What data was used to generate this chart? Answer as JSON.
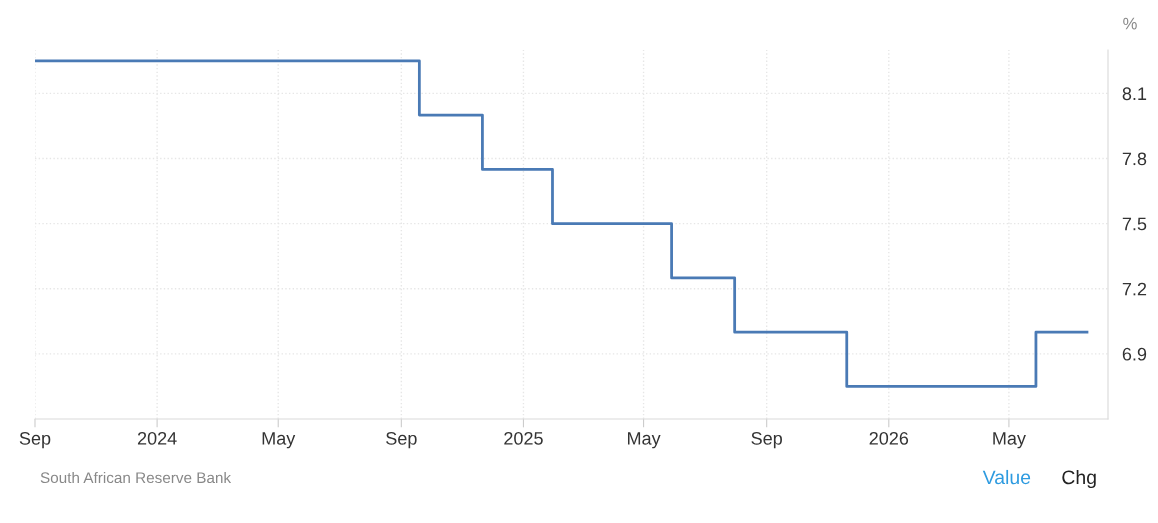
{
  "chart_data": {
    "type": "step",
    "ylabel": "%",
    "x": [
      "2023-09-01",
      "2024-09-19",
      "2024-11-21",
      "2025-01-30",
      "2025-05-29",
      "2025-07-31",
      "2025-11-20",
      "2026-05-28",
      "2026-07-18"
    ],
    "series": [
      {
        "color": "#4a7ab5",
        "values": [
          8.25,
          8.0,
          7.75,
          7.5,
          7.25,
          7.0,
          6.75,
          7.0,
          7.0
        ]
      }
    ],
    "xlim": [
      "2023-09-01",
      "2026-08-08"
    ],
    "xticks": [
      {
        "value": "2023-09-01",
        "label": "Sep"
      },
      {
        "value": "2024-01-01",
        "label": "2024"
      },
      {
        "value": "2024-05-01",
        "label": "May"
      },
      {
        "value": "2024-09-01",
        "label": "Sep"
      },
      {
        "value": "2025-01-01",
        "label": "2025"
      },
      {
        "value": "2025-05-01",
        "label": "May"
      },
      {
        "value": "2025-09-01",
        "label": "Sep"
      },
      {
        "value": "2026-01-01",
        "label": "2026"
      },
      {
        "value": "2026-05-01",
        "label": "May"
      }
    ],
    "ylim": [
      6.6,
      8.3
    ],
    "yticks": [
      6.9,
      7.2,
      7.5,
      7.8,
      8.1
    ],
    "grid": true,
    "marker": "none",
    "line_style": "solid",
    "annotations": [
      "South African Reserve Bank",
      "Value",
      "Chg"
    ]
  }
}
